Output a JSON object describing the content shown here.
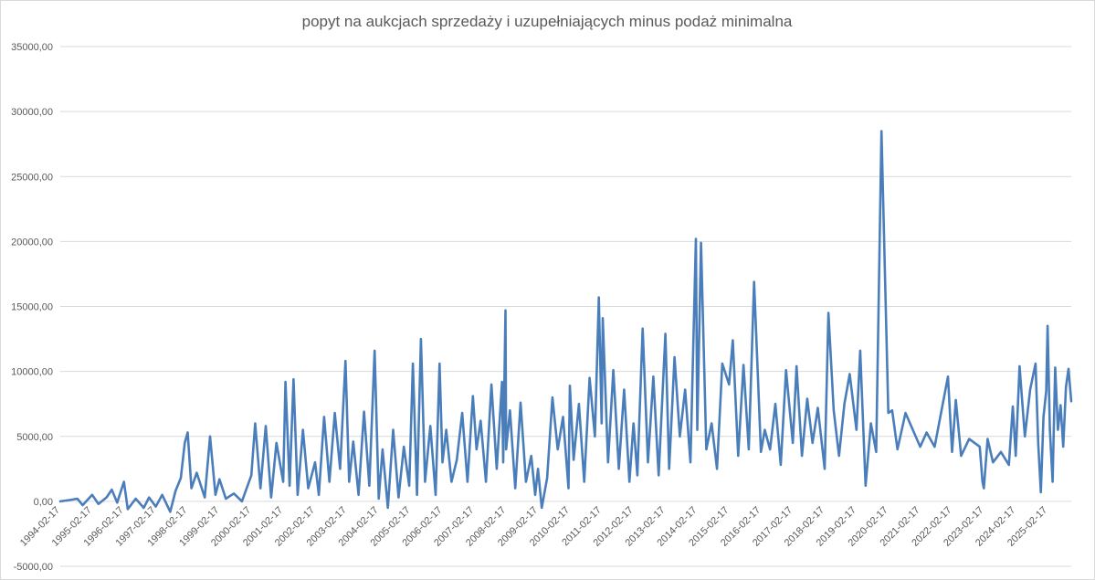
{
  "chart_data": {
    "type": "line",
    "title": "popyt na aukcjach sprzedaży i uzupełniających minus podaż minimalna",
    "xlabel": "",
    "ylabel": "",
    "ylim": [
      -5000,
      35000
    ],
    "ytick_values": [
      -5000,
      0,
      5000,
      10000,
      15000,
      20000,
      25000,
      30000,
      35000
    ],
    "ytick_labels": [
      "-5000,00",
      "0,00",
      "5000,00",
      "10000,00",
      "15000,00",
      "20000,00",
      "25000,00",
      "30000,00",
      "35000,00"
    ],
    "x_tick_labels": [
      "1994-02-17",
      "1995-02-17",
      "1996-02-17",
      "1997-02-17",
      "1998-02-17",
      "1999-02-17",
      "2000-02-17",
      "2001-02-17",
      "2002-02-17",
      "2003-02-17",
      "2004-02-17",
      "2005-02-17",
      "2006-02-17",
      "2007-02-17",
      "2008-02-17",
      "2009-02-17",
      "2010-02-17",
      "2011-02-17",
      "2012-02-17",
      "2013-02-17",
      "2014-02-17",
      "2015-02-17",
      "2016-02-17",
      "2017-02-17",
      "2018-02-17",
      "2019-02-17",
      "2020-02-17",
      "2021-02-17",
      "2022-02-17",
      "2023-02-17",
      "2024-02-17",
      "2025-02-17"
    ],
    "grid": true,
    "legend": "none",
    "series": [
      {
        "color": "#4a7ebb",
        "points": [
          [
            "1994-02-17",
            0
          ],
          [
            "1994-06-01",
            100
          ],
          [
            "1994-09-01",
            200
          ],
          [
            "1994-11-01",
            -300
          ],
          [
            "1995-02-17",
            500
          ],
          [
            "1995-05-01",
            -200
          ],
          [
            "1995-08-01",
            300
          ],
          [
            "1995-10-01",
            900
          ],
          [
            "1995-12-01",
            -100
          ],
          [
            "1996-02-17",
            1500
          ],
          [
            "1996-04-01",
            -600
          ],
          [
            "1996-07-01",
            200
          ],
          [
            "1996-10-01",
            -500
          ],
          [
            "1996-12-01",
            300
          ],
          [
            "1997-02-17",
            -400
          ],
          [
            "1997-05-01",
            500
          ],
          [
            "1997-08-01",
            -800
          ],
          [
            "1997-10-01",
            800
          ],
          [
            "1997-12-01",
            1800
          ],
          [
            "1998-01-15",
            4500
          ],
          [
            "1998-02-17",
            5300
          ],
          [
            "1998-04-01",
            1000
          ],
          [
            "1998-06-01",
            2200
          ],
          [
            "1998-09-01",
            300
          ],
          [
            "1998-11-01",
            5000
          ],
          [
            "1999-01-01",
            500
          ],
          [
            "1999-02-17",
            1700
          ],
          [
            "1999-05-01",
            200
          ],
          [
            "1999-08-01",
            600
          ],
          [
            "1999-11-01",
            0
          ],
          [
            "2000-02-17",
            2000
          ],
          [
            "2000-04-01",
            6000
          ],
          [
            "2000-06-01",
            1000
          ],
          [
            "2000-08-01",
            5800
          ],
          [
            "2000-10-01",
            300
          ],
          [
            "2000-12-01",
            4500
          ],
          [
            "2001-02-17",
            1500
          ],
          [
            "2001-03-15",
            9200
          ],
          [
            "2001-05-01",
            1200
          ],
          [
            "2001-06-15",
            9400
          ],
          [
            "2001-08-01",
            500
          ],
          [
            "2001-10-01",
            5500
          ],
          [
            "2001-12-01",
            1000
          ],
          [
            "2002-02-17",
            3000
          ],
          [
            "2002-04-01",
            500
          ],
          [
            "2002-06-01",
            6500
          ],
          [
            "2002-08-01",
            1500
          ],
          [
            "2002-10-01",
            6800
          ],
          [
            "2002-12-01",
            2500
          ],
          [
            "2003-02-01",
            10800
          ],
          [
            "2003-03-15",
            1500
          ],
          [
            "2003-05-01",
            4600
          ],
          [
            "2003-07-01",
            500
          ],
          [
            "2003-09-01",
            6900
          ],
          [
            "2003-11-01",
            1200
          ],
          [
            "2004-01-01",
            11600
          ],
          [
            "2004-02-17",
            200
          ],
          [
            "2004-04-01",
            4000
          ],
          [
            "2004-06-01",
            -500
          ],
          [
            "2004-08-01",
            5500
          ],
          [
            "2004-10-01",
            300
          ],
          [
            "2004-12-01",
            4200
          ],
          [
            "2005-02-01",
            1200
          ],
          [
            "2005-03-15",
            10600
          ],
          [
            "2005-05-01",
            500
          ],
          [
            "2005-06-15",
            12500
          ],
          [
            "2005-08-01",
            1500
          ],
          [
            "2005-10-01",
            5800
          ],
          [
            "2005-12-01",
            500
          ],
          [
            "2006-01-15",
            10600
          ],
          [
            "2006-02-17",
            3000
          ],
          [
            "2006-04-01",
            5500
          ],
          [
            "2006-06-01",
            1500
          ],
          [
            "2006-08-01",
            3200
          ],
          [
            "2006-10-01",
            6800
          ],
          [
            "2006-12-01",
            1500
          ],
          [
            "2007-02-01",
            8100
          ],
          [
            "2007-03-15",
            4000
          ],
          [
            "2007-05-01",
            6200
          ],
          [
            "2007-07-01",
            1500
          ],
          [
            "2007-09-01",
            9000
          ],
          [
            "2007-11-01",
            2500
          ],
          [
            "2008-01-01",
            9200
          ],
          [
            "2008-01-15",
            3000
          ],
          [
            "2008-02-01",
            11000
          ],
          [
            "2008-02-10",
            14700
          ],
          [
            "2008-02-17",
            4000
          ],
          [
            "2008-04-01",
            7000
          ],
          [
            "2008-06-01",
            1000
          ],
          [
            "2008-08-01",
            7600
          ],
          [
            "2008-10-01",
            1500
          ],
          [
            "2008-12-01",
            3500
          ],
          [
            "2009-01-15",
            500
          ],
          [
            "2009-02-17",
            2500
          ],
          [
            "2009-04-01",
            -500
          ],
          [
            "2009-06-01",
            1800
          ],
          [
            "2009-08-01",
            8000
          ],
          [
            "2009-10-01",
            4000
          ],
          [
            "2009-12-01",
            6500
          ],
          [
            "2010-02-01",
            1000
          ],
          [
            "2010-02-17",
            8900
          ],
          [
            "2010-04-01",
            3200
          ],
          [
            "2010-06-01",
            7500
          ],
          [
            "2010-08-01",
            1500
          ],
          [
            "2010-10-01",
            9500
          ],
          [
            "2010-12-01",
            5000
          ],
          [
            "2011-01-15",
            15700
          ],
          [
            "2011-02-17",
            6000
          ],
          [
            "2011-03-01",
            14100
          ],
          [
            "2011-05-01",
            3000
          ],
          [
            "2011-07-01",
            10100
          ],
          [
            "2011-09-01",
            2500
          ],
          [
            "2011-11-01",
            8600
          ],
          [
            "2012-01-01",
            1500
          ],
          [
            "2012-02-17",
            6000
          ],
          [
            "2012-04-01",
            2000
          ],
          [
            "2012-06-01",
            13300
          ],
          [
            "2012-08-01",
            3000
          ],
          [
            "2012-10-01",
            9600
          ],
          [
            "2012-12-01",
            2000
          ],
          [
            "2013-02-17",
            12900
          ],
          [
            "2013-04-01",
            2500
          ],
          [
            "2013-06-01",
            11100
          ],
          [
            "2013-08-01",
            5000
          ],
          [
            "2013-10-01",
            8600
          ],
          [
            "2013-12-01",
            3000
          ],
          [
            "2014-02-01",
            20200
          ],
          [
            "2014-02-17",
            5500
          ],
          [
            "2014-04-01",
            19900
          ],
          [
            "2014-06-01",
            4000
          ],
          [
            "2014-08-01",
            6000
          ],
          [
            "2014-10-01",
            2500
          ],
          [
            "2014-12-01",
            10600
          ],
          [
            "2015-02-17",
            9000
          ],
          [
            "2015-04-01",
            12400
          ],
          [
            "2015-06-01",
            3500
          ],
          [
            "2015-08-01",
            10500
          ],
          [
            "2015-10-01",
            4000
          ],
          [
            "2015-12-01",
            16900
          ],
          [
            "2016-02-17",
            3800
          ],
          [
            "2016-04-01",
            5500
          ],
          [
            "2016-06-01",
            4000
          ],
          [
            "2016-08-01",
            7500
          ],
          [
            "2016-10-01",
            2800
          ],
          [
            "2016-12-01",
            10100
          ],
          [
            "2017-02-17",
            4500
          ],
          [
            "2017-04-01",
            10400
          ],
          [
            "2017-06-01",
            3500
          ],
          [
            "2017-08-01",
            7900
          ],
          [
            "2017-10-01",
            4500
          ],
          [
            "2017-12-01",
            7200
          ],
          [
            "2018-02-17",
            2500
          ],
          [
            "2018-04-01",
            14500
          ],
          [
            "2018-06-01",
            7000
          ],
          [
            "2018-08-01",
            3500
          ],
          [
            "2018-10-01",
            7500
          ],
          [
            "2018-12-01",
            9800
          ],
          [
            "2019-02-17",
            5500
          ],
          [
            "2019-04-01",
            11600
          ],
          [
            "2019-06-01",
            1200
          ],
          [
            "2019-08-01",
            6000
          ],
          [
            "2019-10-01",
            3800
          ],
          [
            "2019-12-01",
            28500
          ],
          [
            "2020-02-17",
            6800
          ],
          [
            "2020-04-01",
            7000
          ],
          [
            "2020-06-01",
            4000
          ],
          [
            "2020-09-01",
            6800
          ],
          [
            "2021-02-17",
            4200
          ],
          [
            "2021-05-01",
            5300
          ],
          [
            "2021-08-01",
            4200
          ],
          [
            "2022-01-01",
            9600
          ],
          [
            "2022-02-17",
            3800
          ],
          [
            "2022-04-01",
            7800
          ],
          [
            "2022-06-01",
            3500
          ],
          [
            "2022-09-01",
            4800
          ],
          [
            "2023-01-01",
            4200
          ],
          [
            "2023-02-01",
            1500
          ],
          [
            "2023-02-17",
            1000
          ],
          [
            "2023-04-01",
            4800
          ],
          [
            "2023-06-01",
            3000
          ],
          [
            "2023-09-01",
            3800
          ],
          [
            "2023-12-01",
            2800
          ],
          [
            "2024-01-15",
            7300
          ],
          [
            "2024-02-17",
            3500
          ],
          [
            "2024-04-01",
            10400
          ],
          [
            "2024-06-01",
            5000
          ],
          [
            "2024-08-01",
            8600
          ],
          [
            "2024-10-01",
            10600
          ],
          [
            "2024-11-01",
            4500
          ],
          [
            "2024-12-01",
            700
          ],
          [
            "2025-01-01",
            6500
          ],
          [
            "2025-02-01",
            8500
          ],
          [
            "2025-02-17",
            13500
          ],
          [
            "2025-03-15",
            5500
          ],
          [
            "2025-04-15",
            1500
          ],
          [
            "2025-05-15",
            10300
          ],
          [
            "2025-06-15",
            5500
          ],
          [
            "2025-07-15",
            7400
          ],
          [
            "2025-08-15",
            4200
          ],
          [
            "2025-09-15",
            8800
          ],
          [
            "2025-10-15",
            10200
          ],
          [
            "2025-11-15",
            7700
          ]
        ]
      }
    ]
  }
}
